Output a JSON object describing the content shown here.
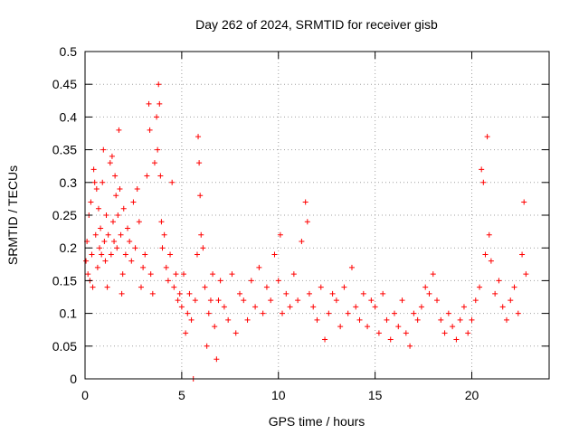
{
  "chart_data": {
    "type": "scatter",
    "title": "Day 262 of 2024, SRMTID for receiver gisb",
    "xlabel": "GPS time / hours",
    "ylabel": "SRMTID / TECUs",
    "xlim": [
      0,
      24
    ],
    "ylim": [
      0,
      0.5
    ],
    "xticks": [
      0,
      5,
      10,
      15,
      20
    ],
    "xtick_labels": [
      "0",
      "5",
      "10",
      "15",
      "20"
    ],
    "yticks": [
      0,
      0.05,
      0.1,
      0.15,
      0.2,
      0.25,
      0.3,
      0.35,
      0.4,
      0.45,
      0.5
    ],
    "ytick_labels": [
      "0",
      "0.05",
      "0.1",
      "0.15",
      "0.2",
      "0.25",
      "0.3",
      "0.35",
      "0.4",
      "0.45",
      "0.5"
    ],
    "grid": true,
    "marker": "+",
    "marker_color": "#ff0000",
    "series": [
      {
        "name": "SRMTID",
        "points": [
          [
            0.05,
            0.18
          ],
          [
            0.1,
            0.21
          ],
          [
            0.15,
            0.16
          ],
          [
            0.2,
            0.25
          ],
          [
            0.25,
            0.15
          ],
          [
            0.3,
            0.27
          ],
          [
            0.35,
            0.19
          ],
          [
            0.4,
            0.14
          ],
          [
            0.45,
            0.32
          ],
          [
            0.5,
            0.3
          ],
          [
            0.55,
            0.22
          ],
          [
            0.6,
            0.29
          ],
          [
            0.65,
            0.17
          ],
          [
            0.7,
            0.26
          ],
          [
            0.75,
            0.2
          ],
          [
            0.8,
            0.23
          ],
          [
            0.85,
            0.19
          ],
          [
            0.9,
            0.3
          ],
          [
            0.95,
            0.35
          ],
          [
            1.0,
            0.21
          ],
          [
            1.05,
            0.18
          ],
          [
            1.1,
            0.25
          ],
          [
            1.15,
            0.14
          ],
          [
            1.2,
            0.22
          ],
          [
            1.3,
            0.33
          ],
          [
            1.35,
            0.19
          ],
          [
            1.4,
            0.34
          ],
          [
            1.45,
            0.24
          ],
          [
            1.5,
            0.21
          ],
          [
            1.55,
            0.31
          ],
          [
            1.6,
            0.28
          ],
          [
            1.65,
            0.2
          ],
          [
            1.7,
            0.25
          ],
          [
            1.75,
            0.38
          ],
          [
            1.8,
            0.29
          ],
          [
            1.85,
            0.22
          ],
          [
            1.9,
            0.13
          ],
          [
            1.95,
            0.16
          ],
          [
            2.0,
            0.26
          ],
          [
            2.1,
            0.19
          ],
          [
            2.2,
            0.23
          ],
          [
            2.3,
            0.21
          ],
          [
            2.4,
            0.18
          ],
          [
            2.5,
            0.27
          ],
          [
            2.6,
            0.2
          ],
          [
            2.7,
            0.29
          ],
          [
            2.8,
            0.24
          ],
          [
            2.9,
            0.14
          ],
          [
            3.0,
            0.17
          ],
          [
            3.1,
            0.19
          ],
          [
            3.2,
            0.31
          ],
          [
            3.3,
            0.42
          ],
          [
            3.35,
            0.38
          ],
          [
            3.4,
            0.16
          ],
          [
            3.5,
            0.13
          ],
          [
            3.6,
            0.33
          ],
          [
            3.7,
            0.4
          ],
          [
            3.75,
            0.35
          ],
          [
            3.8,
            0.45
          ],
          [
            3.85,
            0.42
          ],
          [
            3.9,
            0.31
          ],
          [
            3.95,
            0.24
          ],
          [
            4.0,
            0.2
          ],
          [
            4.1,
            0.22
          ],
          [
            4.2,
            0.17
          ],
          [
            4.3,
            0.15
          ],
          [
            4.4,
            0.19
          ],
          [
            4.5,
            0.3
          ],
          [
            4.6,
            0.14
          ],
          [
            4.7,
            0.16
          ],
          [
            4.8,
            0.12
          ],
          [
            4.9,
            0.13
          ],
          [
            5.0,
            0.11
          ],
          [
            5.1,
            0.16
          ],
          [
            5.2,
            0.07
          ],
          [
            5.3,
            0.1
          ],
          [
            5.4,
            0.13
          ],
          [
            5.5,
            0.09
          ],
          [
            5.6,
            0.0
          ],
          [
            5.7,
            0.12
          ],
          [
            5.8,
            0.19
          ],
          [
            5.85,
            0.37
          ],
          [
            5.9,
            0.33
          ],
          [
            5.95,
            0.28
          ],
          [
            6.0,
            0.22
          ],
          [
            6.1,
            0.2
          ],
          [
            6.2,
            0.14
          ],
          [
            6.3,
            0.05
          ],
          [
            6.4,
            0.1
          ],
          [
            6.5,
            0.12
          ],
          [
            6.6,
            0.16
          ],
          [
            6.7,
            0.08
          ],
          [
            6.8,
            0.03
          ],
          [
            6.9,
            0.12
          ],
          [
            7.0,
            0.15
          ],
          [
            7.2,
            0.11
          ],
          [
            7.4,
            0.09
          ],
          [
            7.6,
            0.16
          ],
          [
            7.8,
            0.07
          ],
          [
            8.0,
            0.13
          ],
          [
            8.2,
            0.12
          ],
          [
            8.4,
            0.09
          ],
          [
            8.6,
            0.15
          ],
          [
            8.8,
            0.11
          ],
          [
            9.0,
            0.17
          ],
          [
            9.2,
            0.1
          ],
          [
            9.4,
            0.14
          ],
          [
            9.6,
            0.12
          ],
          [
            9.8,
            0.19
          ],
          [
            10.0,
            0.15
          ],
          [
            10.1,
            0.22
          ],
          [
            10.2,
            0.1
          ],
          [
            10.4,
            0.13
          ],
          [
            10.6,
            0.11
          ],
          [
            10.8,
            0.16
          ],
          [
            11.0,
            0.12
          ],
          [
            11.2,
            0.21
          ],
          [
            11.4,
            0.27
          ],
          [
            11.5,
            0.24
          ],
          [
            11.6,
            0.13
          ],
          [
            11.8,
            0.11
          ],
          [
            12.0,
            0.09
          ],
          [
            12.2,
            0.14
          ],
          [
            12.4,
            0.06
          ],
          [
            12.6,
            0.1
          ],
          [
            12.8,
            0.13
          ],
          [
            13.0,
            0.12
          ],
          [
            13.2,
            0.08
          ],
          [
            13.4,
            0.14
          ],
          [
            13.6,
            0.1
          ],
          [
            13.8,
            0.17
          ],
          [
            14.0,
            0.11
          ],
          [
            14.2,
            0.09
          ],
          [
            14.4,
            0.13
          ],
          [
            14.6,
            0.08
          ],
          [
            14.8,
            0.12
          ],
          [
            15.0,
            0.11
          ],
          [
            15.2,
            0.07
          ],
          [
            15.4,
            0.13
          ],
          [
            15.6,
            0.09
          ],
          [
            15.8,
            0.06
          ],
          [
            16.0,
            0.1
          ],
          [
            16.2,
            0.08
          ],
          [
            16.4,
            0.12
          ],
          [
            16.6,
            0.07
          ],
          [
            16.8,
            0.05
          ],
          [
            17.0,
            0.1
          ],
          [
            17.2,
            0.09
          ],
          [
            17.4,
            0.11
          ],
          [
            17.6,
            0.14
          ],
          [
            17.8,
            0.13
          ],
          [
            18.0,
            0.16
          ],
          [
            18.2,
            0.12
          ],
          [
            18.4,
            0.09
          ],
          [
            18.6,
            0.07
          ],
          [
            18.8,
            0.1
          ],
          [
            19.0,
            0.08
          ],
          [
            19.2,
            0.06
          ],
          [
            19.4,
            0.09
          ],
          [
            19.6,
            0.11
          ],
          [
            19.8,
            0.07
          ],
          [
            20.0,
            0.09
          ],
          [
            20.2,
            0.12
          ],
          [
            20.4,
            0.14
          ],
          [
            20.5,
            0.32
          ],
          [
            20.6,
            0.3
          ],
          [
            20.7,
            0.19
          ],
          [
            20.8,
            0.37
          ],
          [
            20.9,
            0.22
          ],
          [
            21.0,
            0.18
          ],
          [
            21.2,
            0.13
          ],
          [
            21.4,
            0.15
          ],
          [
            21.6,
            0.11
          ],
          [
            21.8,
            0.09
          ],
          [
            22.0,
            0.12
          ],
          [
            22.2,
            0.14
          ],
          [
            22.4,
            0.1
          ],
          [
            22.6,
            0.19
          ],
          [
            22.7,
            0.27
          ],
          [
            22.8,
            0.16
          ]
        ]
      }
    ]
  }
}
